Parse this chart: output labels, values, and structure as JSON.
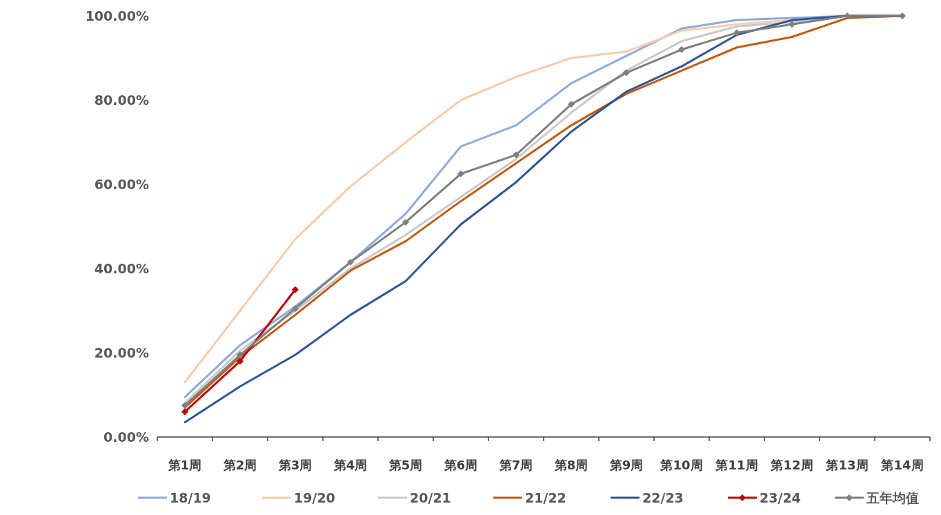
{
  "chart_data": {
    "type": "line",
    "categories": [
      "第1周",
      "第2周",
      "第3周",
      "第4周",
      "第5周",
      "第6周",
      "第7周",
      "第8周",
      "第9周",
      "第10周",
      "第11周",
      "第12周",
      "第13周",
      "第14周"
    ],
    "ylim": [
      0,
      100
    ],
    "yticks": [
      {
        "value": 0,
        "label": "0.00%"
      },
      {
        "value": 20,
        "label": "20.00%"
      },
      {
        "value": 40,
        "label": "40.00%"
      },
      {
        "value": 60,
        "label": "60.00%"
      },
      {
        "value": 80,
        "label": "80.00%"
      },
      {
        "value": 100,
        "label": "100.00%"
      }
    ],
    "legend": "bottom",
    "marker": "none",
    "line_style": "solid",
    "series": [
      {
        "name": "18/19",
        "color": "#8eaadb",
        "values": [
          9.5,
          21.8,
          31,
          41.5,
          53,
          69,
          74,
          84,
          90.5,
          97,
          99,
          99.5,
          100,
          100
        ]
      },
      {
        "name": "19/20",
        "color": "#f8cbad",
        "values": [
          13,
          30,
          47,
          59.5,
          70,
          80,
          85.5,
          90,
          91.5,
          96.5,
          98,
          99,
          100,
          100
        ]
      },
      {
        "name": "20/21",
        "color": "#c9c9c9",
        "values": [
          8,
          20.5,
          30,
          40,
          48,
          57,
          66,
          77,
          87,
          94,
          97.5,
          98.5,
          100,
          100
        ]
      },
      {
        "name": "21/22",
        "color": "#c55a11",
        "values": [
          7,
          19,
          29,
          39.5,
          46.5,
          56,
          65,
          74,
          81.5,
          87,
          92.5,
          95,
          99.5,
          100
        ]
      },
      {
        "name": "22/23",
        "color": "#2f5597",
        "values": [
          3.5,
          12,
          19.5,
          29,
          37,
          50.5,
          60.5,
          72.5,
          82,
          88,
          95.5,
          99,
          100,
          100
        ]
      },
      {
        "name": "23/24",
        "color": "#c00000",
        "marker": "diamond",
        "values": [
          6,
          18,
          35,
          null,
          null,
          null,
          null,
          null,
          null,
          null,
          null,
          null,
          null,
          null
        ]
      },
      {
        "name": "五年均值",
        "color": "#7f7f7f",
        "marker": "diamond",
        "values": [
          7.5,
          19.5,
          30.5,
          41.5,
          51,
          62.5,
          67,
          79,
          86.5,
          92,
          96,
          98,
          100,
          100
        ]
      }
    ]
  }
}
